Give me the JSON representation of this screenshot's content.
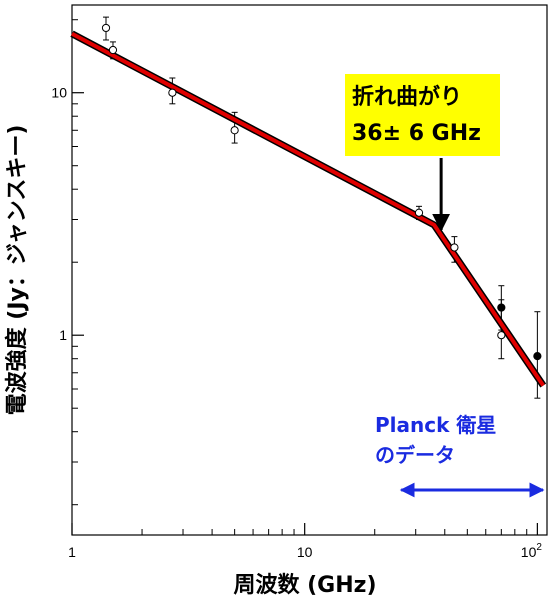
{
  "chart_data": {
    "type": "scatter",
    "title": "",
    "xlabel": "周波数 (GHz)",
    "ylabel": "電波強度 (Jy：ジャンスキー)",
    "x_scale": "log",
    "y_scale": "log",
    "xlim": [
      1,
      110
    ],
    "ylim": [
      0.15,
      23
    ],
    "x_ticks": [
      {
        "value": 1,
        "label": "1"
      },
      {
        "value": 10,
        "label": "10"
      },
      {
        "value": 100,
        "label": "10^2"
      }
    ],
    "y_ticks": [
      {
        "value": 1,
        "label": "1"
      },
      {
        "value": 10,
        "label": "10"
      }
    ],
    "series": [
      {
        "marker": "open-circle",
        "points": [
          {
            "x": 1.4,
            "y": 18.5,
            "yerr_low": 16.5,
            "yerr_high": 20.5
          },
          {
            "x": 1.5,
            "y": 15.0,
            "yerr_low": 13.8,
            "yerr_high": 16.2
          },
          {
            "x": 2.7,
            "y": 10.0,
            "yerr_low": 9.0,
            "yerr_high": 11.5
          },
          {
            "x": 5.0,
            "y": 7.0,
            "yerr_low": 6.2,
            "yerr_high": 8.3
          },
          {
            "x": 31,
            "y": 3.2,
            "yerr_low": 3.0,
            "yerr_high": 3.4
          },
          {
            "x": 44,
            "y": 2.3,
            "yerr_low": 2.0,
            "yerr_high": 2.55
          },
          {
            "x": 70,
            "y": 1.0,
            "yerr_low": 0.8,
            "yerr_high": 1.4
          }
        ]
      },
      {
        "marker": "filled-circle",
        "points": [
          {
            "x": 70,
            "y": 1.3,
            "yerr_low": 1.05,
            "yerr_high": 1.6
          },
          {
            "x": 100,
            "y": 0.82,
            "yerr_low": 0.55,
            "yerr_high": 1.25
          }
        ]
      }
    ],
    "fit_line": {
      "color": "#e00000",
      "points": [
        {
          "x": 1.0,
          "y": 17.5
        },
        {
          "x": 36,
          "y": 2.85
        },
        {
          "x": 106,
          "y": 0.62
        }
      ]
    },
    "annotations": {
      "callout_line1": "折れ曲がり",
      "callout_line2": "36± 6 GHz",
      "callout_bg": "#ffff00",
      "arrow_target_x": 36,
      "planck_line1": "Planck 衛星",
      "planck_line2": "のデータ",
      "planck_color": "#1a2be0",
      "planck_range": [
        26,
        110
      ]
    }
  }
}
